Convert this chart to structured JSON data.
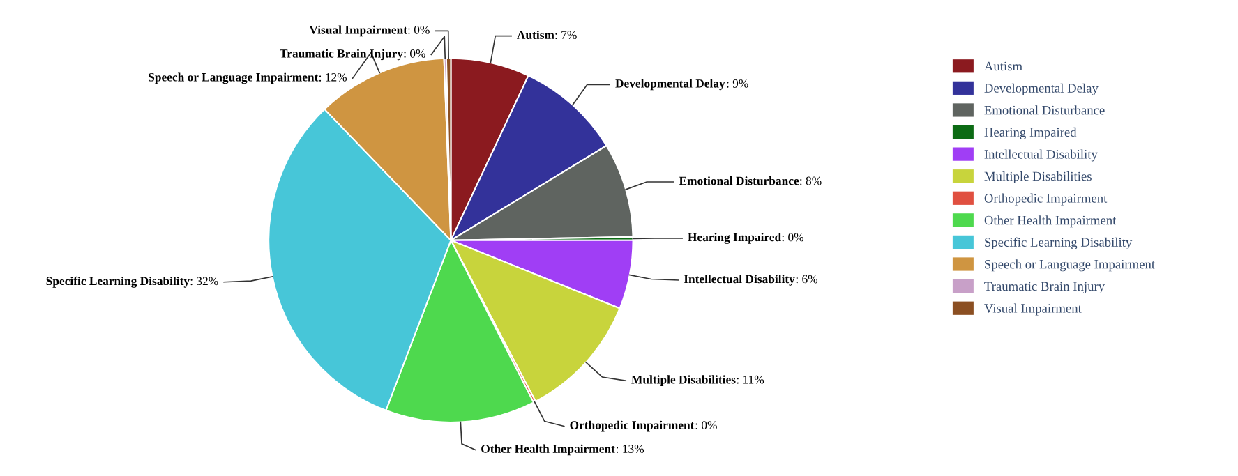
{
  "chart_data": {
    "type": "pie",
    "categories": [
      "Autism",
      "Developmental Delay",
      "Emotional Disturbance",
      "Hearing Impaired",
      "Intellectual Disability",
      "Multiple Disabilities",
      "Orthopedic Impairment",
      "Other Health Impairment",
      "Specific Learning Disability",
      "Speech or Language Impairment",
      "Traumatic Brain Injury",
      "Visual Impairment"
    ],
    "values": [
      7.0,
      9.3,
      8.4,
      0.3,
      6.1,
      11.2,
      0.2,
      13.3,
      32.0,
      11.6,
      0.2,
      0.4
    ],
    "value_labels": [
      ": 7%",
      ": 9%",
      ": 8%",
      ": 0%",
      ": 6%",
      ": 11%",
      ": 0%",
      ": 13%",
      ": 32%",
      ": 12%",
      ": 0%",
      ": 0%"
    ],
    "colors": [
      "#8b1a1f",
      "#33329a",
      "#5f6460",
      "#0c6b14",
      "#a03ef5",
      "#c8d43c",
      "#e05040",
      "#4ed94e",
      "#47c6d8",
      "#cf9541",
      "#c8a0c8",
      "#8b4f22"
    ],
    "legend": "right"
  }
}
